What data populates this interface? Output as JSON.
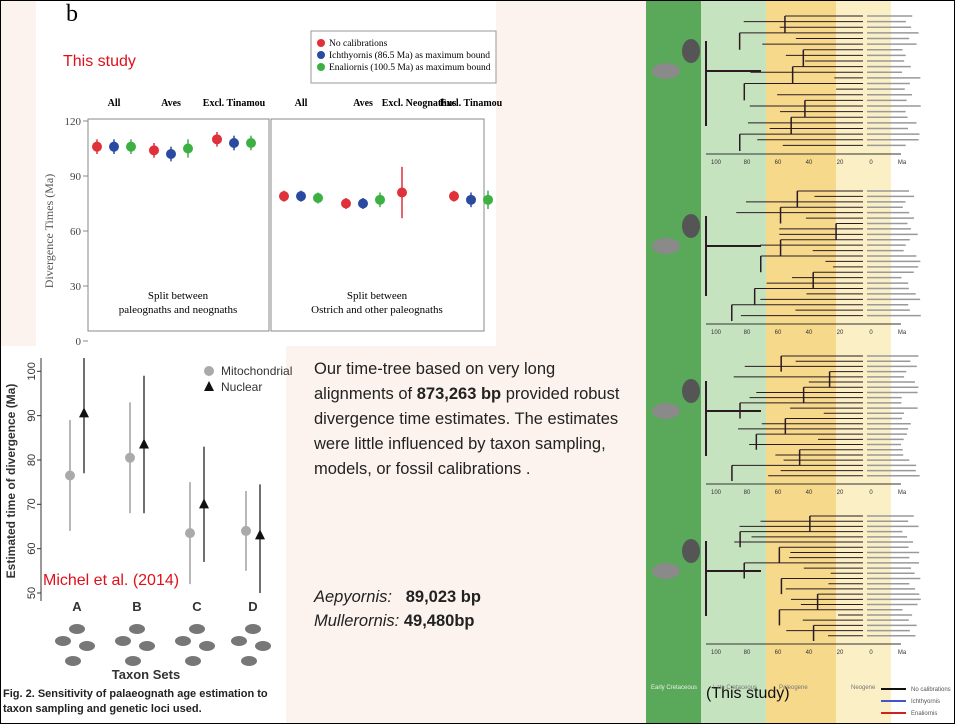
{
  "chart_data": [
    {
      "type": "errorbar",
      "title": "b",
      "annotation": "This study",
      "y_label": "Divergence Times (Ma)",
      "categories": [
        "All",
        "Aves",
        "Excl. Tinamou",
        "All",
        "Aves",
        "Excl. Neognathus",
        "Excl. Tinamou"
      ],
      "panel_labels": [
        [
          "Split between",
          "paleognaths and neognaths"
        ],
        [
          "Split between",
          "Ostrich and other paleognaths"
        ]
      ],
      "series": [
        {
          "name": "No calibrations",
          "color": "#e0303a",
          "marker": "circle",
          "values": [
            106,
            104,
            110,
            79,
            75,
            81,
            79
          ],
          "errors": [
            4,
            4,
            4,
            3,
            3,
            14,
            3
          ]
        },
        {
          "name": "Ichthyornis (86.5 Ma) as maximum bound",
          "color": "#2a4aa0",
          "marker": "circle",
          "values": [
            106,
            102,
            108,
            79,
            75,
            null,
            77
          ],
          "errors": [
            4,
            4,
            4,
            3,
            3,
            null,
            4
          ]
        },
        {
          "name": "Enaliornis (100.5 Ma) as maximum bound",
          "color": "#3cb043",
          "marker": "circle",
          "values": [
            106,
            105,
            108,
            78,
            77,
            null,
            77
          ],
          "errors": [
            4,
            5,
            4,
            3,
            4,
            null,
            5
          ]
        }
      ],
      "ylim": [
        0,
        120
      ],
      "yticks": [
        0,
        30,
        60,
        90,
        120
      ]
    },
    {
      "type": "errorbar",
      "annotation": "Michel et al. (2014)",
      "y_label": "Estimated time of divergence (Ma)",
      "x_label": "Taxon Sets",
      "caption": "Fig. 2. Sensitivity of palaeognath age estimation to taxon sampling and genetic loci used.",
      "categories": [
        "A",
        "B",
        "C",
        "D"
      ],
      "series": [
        {
          "name": "Mitochondrial",
          "color": "#aaaaaa",
          "marker": "circle",
          "values": [
            76.5,
            80.5,
            63.5,
            64
          ],
          "lower": [
            64,
            68,
            52,
            55
          ],
          "upper": [
            89,
            93,
            75,
            73
          ]
        },
        {
          "name": "Nuclear",
          "color": "#111111",
          "marker": "triangle",
          "values": [
            90.5,
            83.5,
            70,
            63
          ],
          "lower": [
            77,
            68,
            57,
            50
          ],
          "upper": [
            103,
            99,
            83,
            74.5
          ]
        }
      ],
      "ylim": [
        50,
        103
      ],
      "yticks": [
        50,
        60,
        70,
        80,
        90,
        100
      ]
    }
  ],
  "text": {
    "before": "Our time-tree based on very long alignments of ",
    "bold": "873,263 bp",
    "after": " provided robust divergence time estimates. The estimates were little influenced by taxon sampling, models, or fossil calibrations .",
    "genomes": [
      {
        "label": "Aepyornis:",
        "value": "89,023 bp"
      },
      {
        "label": "Mullerornis:",
        "value": "49,480bp"
      }
    ]
  },
  "right_panel": {
    "note": "(This study)",
    "axis_labels": [
      "100",
      "80",
      "60",
      "40",
      "20",
      "0",
      "Ma"
    ],
    "periods": [
      "Early Cretaceous",
      "Late Cretaceous",
      "Paleogene",
      "Neogene"
    ],
    "legend": [
      {
        "name": "No calibrations",
        "color": "#111111"
      },
      {
        "name": "Ichthyornis",
        "color": "#4455cc"
      },
      {
        "name": "Enaliornis",
        "color": "#cc2222"
      }
    ]
  }
}
